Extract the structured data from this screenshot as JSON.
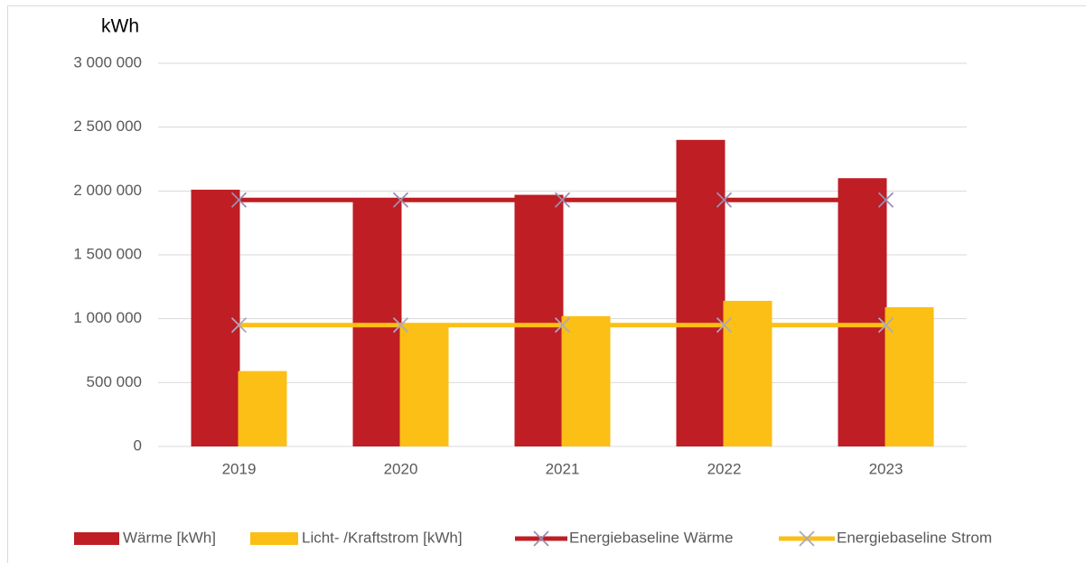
{
  "chart_data": {
    "type": "bar",
    "y_label": "kWh",
    "categories": [
      "2019",
      "2020",
      "2021",
      "2022",
      "2023"
    ],
    "series": [
      {
        "name": "Wärme [kWh]",
        "type": "bar",
        "color": "#be1e24",
        "values": [
          2010000,
          1940000,
          1970000,
          2400000,
          2100000
        ]
      },
      {
        "name": "Licht- /Kraftstrom [kWh]",
        "type": "bar",
        "color": "#fbbf15",
        "values": [
          590000,
          955000,
          1020000,
          1140000,
          1090000
        ]
      },
      {
        "name": "Energiebaseline Wärme",
        "type": "line",
        "color": "#be1e24",
        "marker_color": "#9b8fb0",
        "values": [
          1930000,
          1930000,
          1930000,
          1930000,
          1930000
        ]
      },
      {
        "name": "Energiebaseline Strom",
        "type": "line",
        "color": "#fbbf15",
        "marker_color": "#a9a9c0",
        "values": [
          950000,
          950000,
          950000,
          950000,
          950000
        ]
      }
    ],
    "ylim": [
      0,
      3000000
    ],
    "yticks": [
      0,
      {
        "value": 500000,
        "label": "500 000"
      },
      {
        "value": 1000000,
        "label": "1 000 000"
      },
      {
        "value": 1500000,
        "label": "1 500 000"
      },
      {
        "value": 2000000,
        "label": "2 000 000"
      },
      {
        "value": 2500000,
        "label": "2 500 000"
      },
      {
        "value": 3000000,
        "label": "3 000 000"
      }
    ],
    "grid": true,
    "legend": "bottom"
  }
}
